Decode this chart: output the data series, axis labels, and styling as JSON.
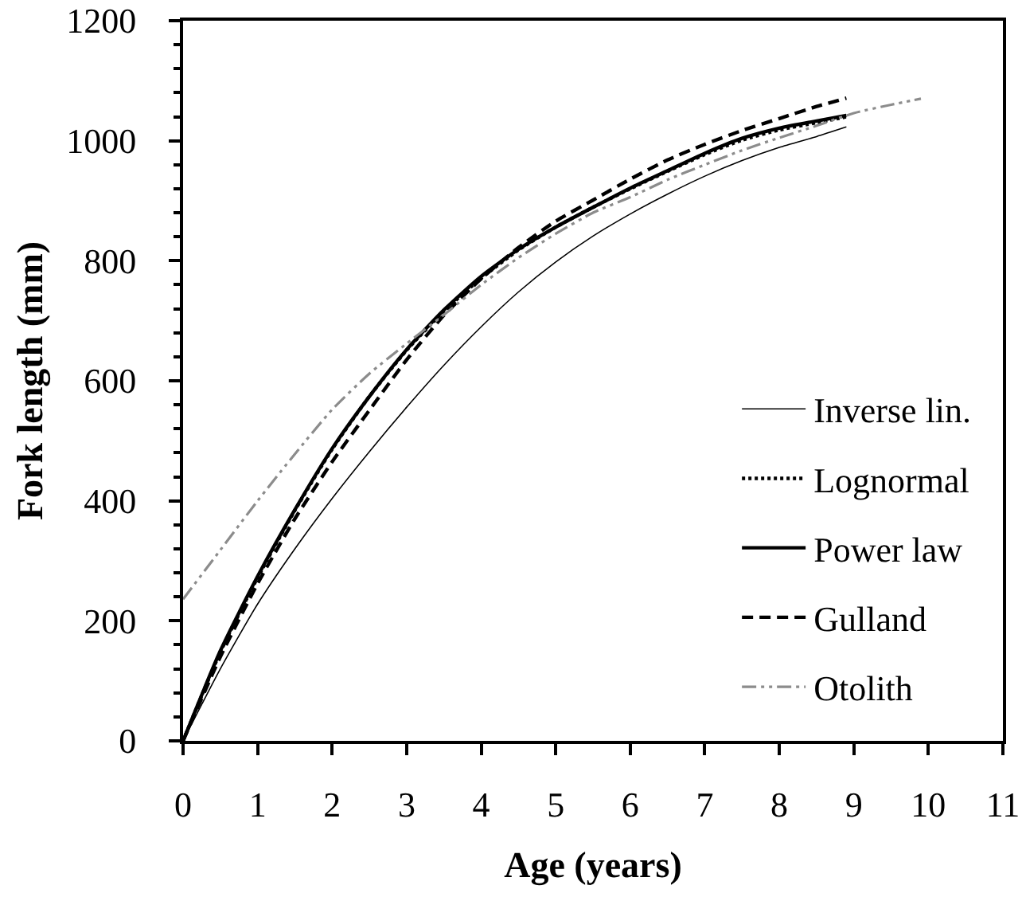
{
  "chart_data": {
    "type": "line",
    "xlabel": "Age (years)",
    "ylabel": "Fork length (mm)",
    "xlim": [
      0,
      11
    ],
    "xticks": [
      0,
      1,
      2,
      3,
      4,
      5,
      6,
      7,
      8,
      9,
      10,
      11
    ],
    "ylim": [
      0,
      1200
    ],
    "yticks": [
      0,
      {
        "value": 40,
        "label": null
      },
      {
        "value": 80,
        "label": null
      },
      {
        "value": 120,
        "label": null
      },
      {
        "value": 160,
        "label": null
      },
      200,
      {
        "value": 240,
        "label": null
      },
      {
        "value": 280,
        "label": null
      },
      {
        "value": 320,
        "label": null
      },
      {
        "value": 360,
        "label": null
      },
      400,
      {
        "value": 440,
        "label": null
      },
      {
        "value": 480,
        "label": null
      },
      {
        "value": 520,
        "label": null
      },
      {
        "value": 560,
        "label": null
      },
      600,
      {
        "value": 640,
        "label": null
      },
      {
        "value": 680,
        "label": null
      },
      {
        "value": 720,
        "label": null
      },
      {
        "value": 760,
        "label": null
      },
      800,
      {
        "value": 840,
        "label": null
      },
      {
        "value": 880,
        "label": null
      },
      {
        "value": 920,
        "label": null
      },
      {
        "value": 960,
        "label": null
      },
      1000,
      {
        "value": 1040,
        "label": null
      },
      {
        "value": 1080,
        "label": null
      },
      {
        "value": 1120,
        "label": null
      },
      {
        "value": 1160,
        "label": null
      },
      1200
    ],
    "legend": "bottom right",
    "marker": "none",
    "series": [
      {
        "name": "Inverse lin.",
        "color": "#000000",
        "line_style": "solid",
        "x": [
          0,
          0.5,
          1,
          1.5,
          2,
          2.5,
          3,
          3.5,
          4,
          4.5,
          5,
          5.5,
          6,
          6.5,
          7,
          7.5,
          8,
          8.5,
          8.9
        ],
        "values": [
          0,
          120,
          228,
          320,
          404,
          482,
          556,
          626,
          690,
          748,
          798,
          841,
          878,
          911,
          941,
          967,
          989,
          1007,
          1023
        ]
      },
      {
        "name": "Lognormal",
        "color": "#000000",
        "line_style": "dotted",
        "x": [
          0,
          0.5,
          1,
          1.5,
          2,
          2.5,
          3,
          3.5,
          4,
          4.5,
          5,
          5.5,
          6,
          6.5,
          7,
          7.5,
          8,
          8.5,
          8.9
        ],
        "values": [
          0,
          148,
          272,
          384,
          486,
          574,
          651,
          716,
          771,
          818,
          856,
          889,
          920,
          949,
          977,
          1001,
          1018,
          1030,
          1040
        ]
      },
      {
        "name": "Power law",
        "color": "#000000",
        "line_style": "solid",
        "x": [
          0,
          0.5,
          1,
          1.5,
          2,
          2.5,
          3,
          3.5,
          4,
          4.5,
          5,
          5.5,
          6,
          6.5,
          7,
          7.5,
          8,
          8.5,
          8.9
        ],
        "values": [
          0,
          150,
          274,
          385,
          487,
          574,
          652,
          718,
          774,
          819,
          856,
          889,
          921,
          950,
          979,
          1004,
          1021,
          1033,
          1042
        ]
      },
      {
        "name": "Gulland",
        "color": "#000000",
        "line_style": "dashed",
        "x": [
          0,
          0.5,
          1,
          1.5,
          2,
          2.5,
          3,
          3.5,
          4,
          4.5,
          5,
          5.5,
          6,
          6.5,
          7,
          7.5,
          8,
          8.5,
          8.9
        ],
        "values": [
          0,
          140,
          262,
          370,
          465,
          551,
          635,
          709,
          770,
          822,
          866,
          901,
          936,
          968,
          994,
          1017,
          1037,
          1057,
          1071
        ]
      },
      {
        "name": "Otolith",
        "color": "#8c8c8c",
        "line_style": "dashdot",
        "x": [
          0,
          0.5,
          1,
          1.5,
          2,
          2.5,
          3,
          3.5,
          4,
          4.5,
          5,
          5.5,
          6,
          6.5,
          7,
          7.5,
          8,
          8.5,
          9,
          9.5,
          9.9
        ],
        "values": [
          236,
          318,
          400,
          478,
          552,
          612,
          662,
          710,
          760,
          805,
          845,
          880,
          906,
          935,
          960,
          984,
          1005,
          1025,
          1046,
          1060,
          1070
        ]
      }
    ]
  }
}
